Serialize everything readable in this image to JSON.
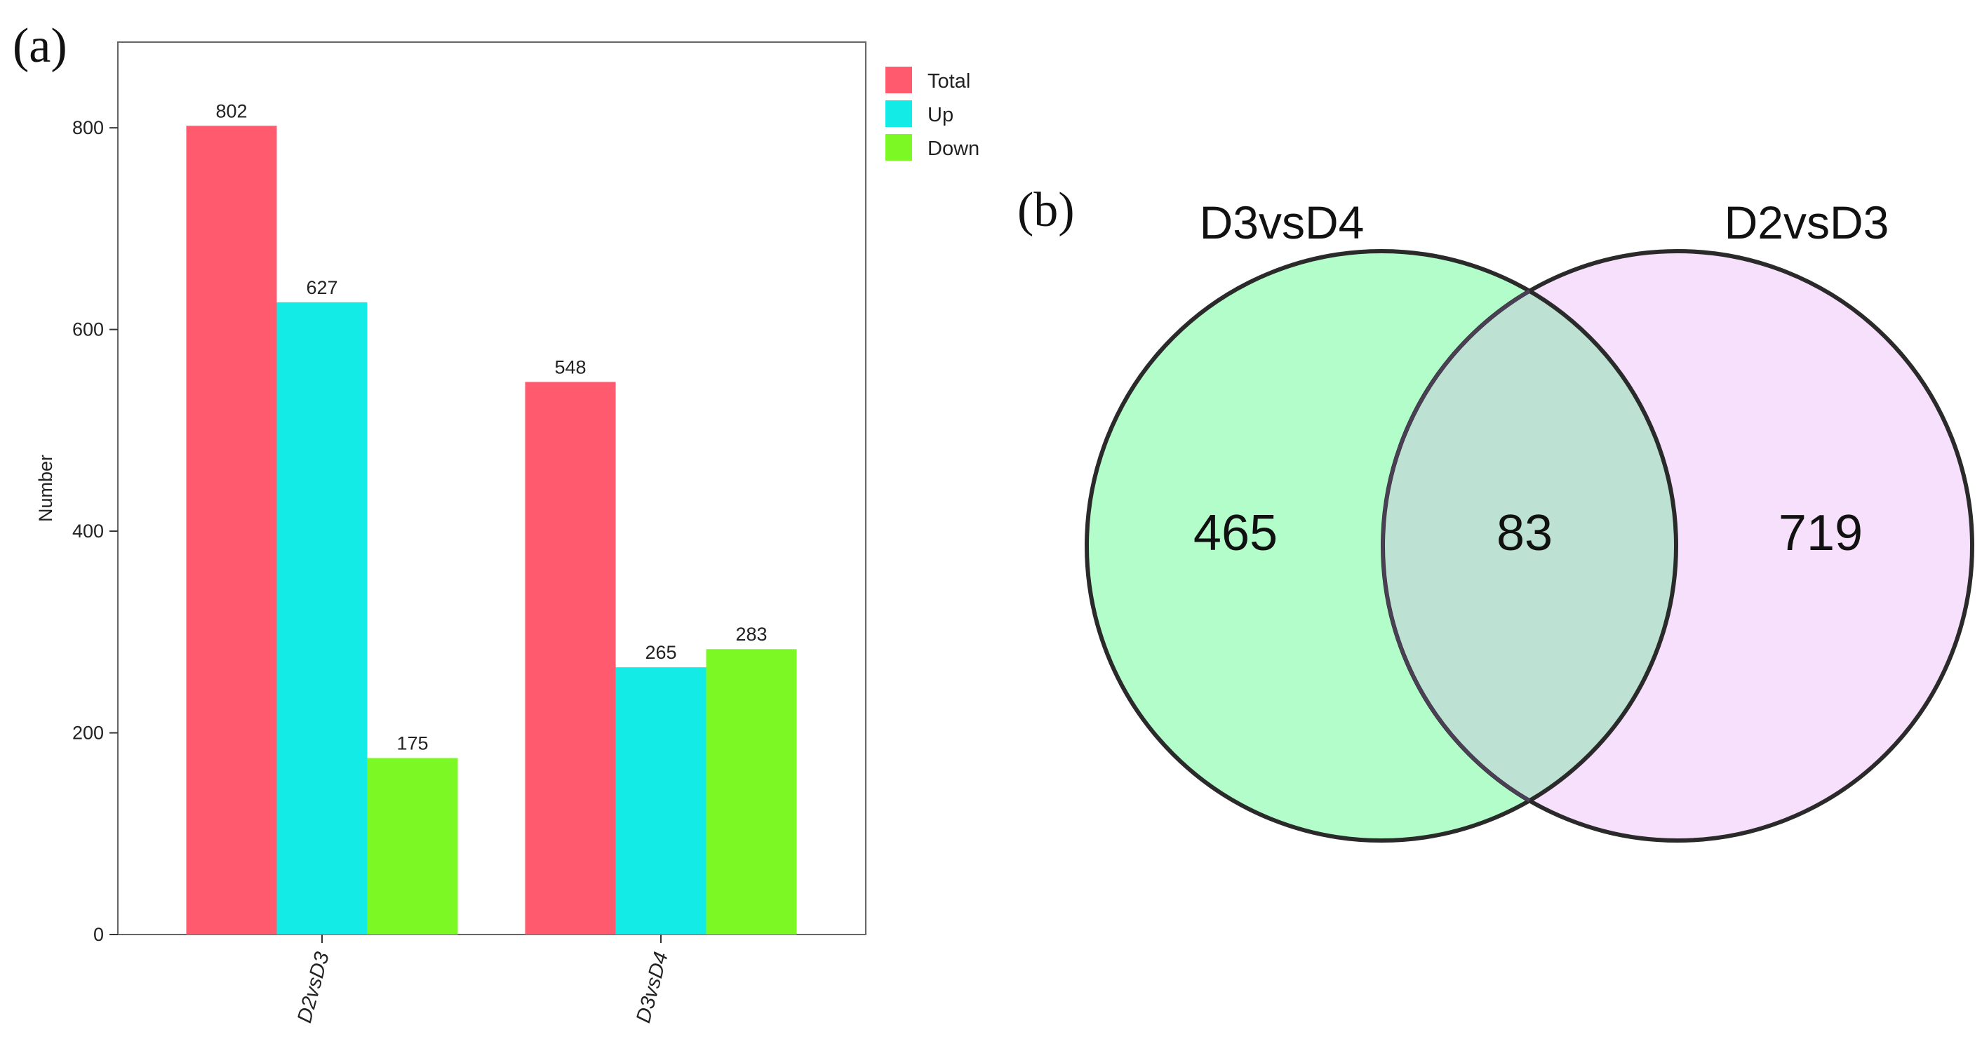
{
  "panels": {
    "a_label": "(a)",
    "b_label": "(b)"
  },
  "chart_data": [
    {
      "type": "bar",
      "ylabel": "Number",
      "xlabel": "",
      "ylim": [
        0,
        885
      ],
      "yticks": [
        0,
        200,
        400,
        600,
        800
      ],
      "categories": [
        "D2vsD3",
        "D3vsD4"
      ],
      "series": [
        {
          "name": "Total",
          "color": "#ff5a6e",
          "values": [
            802,
            548
          ]
        },
        {
          "name": "Up",
          "color": "#13ece6",
          "values": [
            627,
            265
          ]
        },
        {
          "name": "Down",
          "color": "#7cf825",
          "values": [
            175,
            283
          ]
        }
      ],
      "data_labels": true,
      "legend_position": "top-right",
      "grid": false
    },
    {
      "type": "venn",
      "sets": [
        {
          "name": "D3vsD4",
          "color": "#b3fdca",
          "only": 465
        },
        {
          "name": "D2vsD3",
          "color": "#f7e0fb",
          "only": 719
        }
      ],
      "intersection": 83,
      "intersection_color": "#bde1d3"
    }
  ]
}
